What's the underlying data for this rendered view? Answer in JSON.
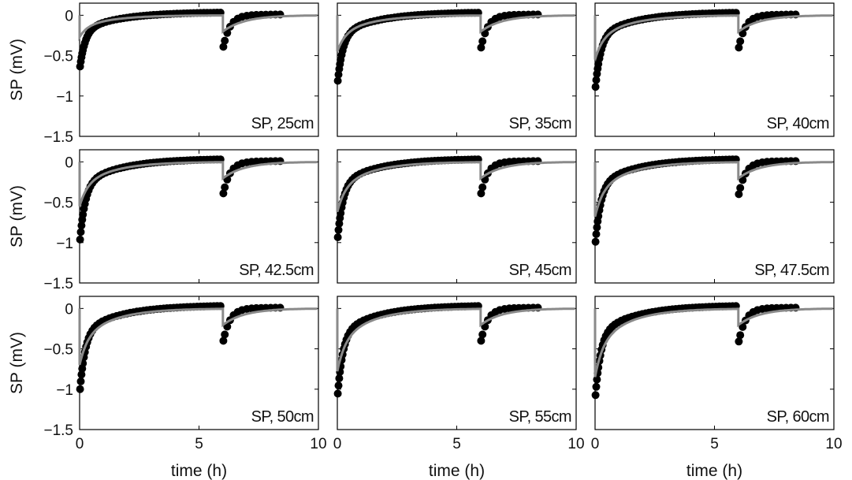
{
  "chart_data": {
    "type": "scatter",
    "ylabel": "SP (mV)",
    "xlabel": "time (h)",
    "xlim": [
      0,
      10
    ],
    "ylim": [
      -1.5,
      0.15
    ],
    "xticks": [
      "0",
      "5",
      "10"
    ],
    "yticks": [
      "0",
      "-0.5",
      "-1",
      "-1.5"
    ],
    "grid": false,
    "marker_color": "#000000",
    "model_color": "#8a8a8a",
    "panels": [
      {
        "label": "SP, 25cm",
        "min1": -0.68,
        "min2": -0.42,
        "model_min": -0.27
      },
      {
        "label": "SP, 35cm",
        "min1": -0.87,
        "min2": -0.43,
        "model_min": -0.45
      },
      {
        "label": "SP, 40cm",
        "min1": -0.95,
        "min2": -0.43,
        "model_min": -0.55
      },
      {
        "label": "SP, 42.5cm",
        "min1": -1.03,
        "min2": -0.42,
        "model_min": -0.55
      },
      {
        "label": "SP, 45cm",
        "min1": -1.0,
        "min2": -0.42,
        "model_min": -0.62
      },
      {
        "label": "SP, 47.5cm",
        "min1": -1.06,
        "min2": -0.43,
        "model_min": -0.68
      },
      {
        "label": "SP, 50cm",
        "min1": -1.07,
        "min2": -0.43,
        "model_min": -0.7
      },
      {
        "label": "SP, 55cm",
        "min1": -1.13,
        "min2": -0.43,
        "model_min": -0.78
      },
      {
        "label": "SP, 60cm",
        "min1": -1.15,
        "min2": -0.44,
        "model_min": -0.85
      }
    ],
    "event_times_h": [
      0,
      6
    ],
    "data_end_h": 8.4
  }
}
